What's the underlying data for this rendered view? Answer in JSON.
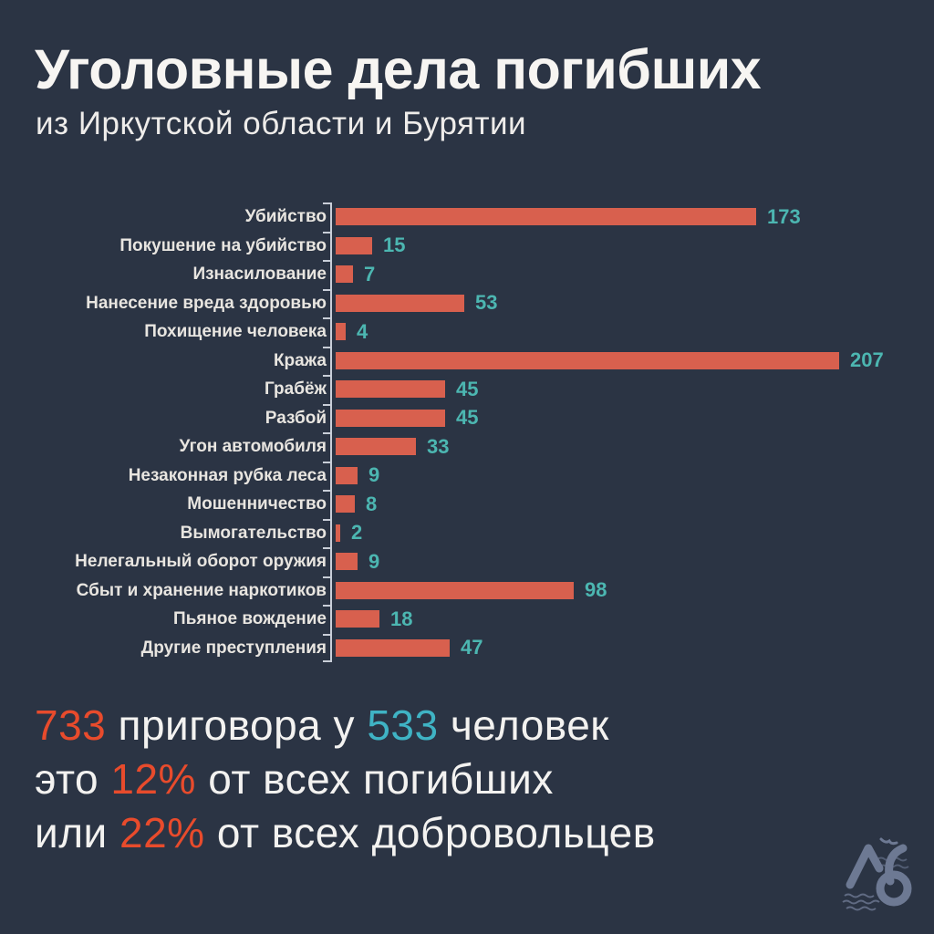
{
  "header": {
    "title": "Уголовные дела погибших",
    "subtitle": "из Иркутской области и Бурятии"
  },
  "chart_data": {
    "type": "bar",
    "orientation": "horizontal",
    "title": "Уголовные дела погибших из Иркутской области и Бурятии",
    "categories": [
      "Убийство",
      "Покушение на убийство",
      "Изнасилование",
      "Нанесение вреда здоровью",
      "Похищение человека",
      "Кража",
      "Грабёж",
      "Разбой",
      "Угон автомобиля",
      "Незаконная рубка леса",
      "Мошенничество",
      "Вымогательство",
      "Нелегальный оборот оружия",
      "Сбыт и хранение наркотиков",
      "Пьяное вождение",
      "Другие преступления"
    ],
    "values": [
      173,
      15,
      7,
      53,
      4,
      207,
      45,
      45,
      33,
      9,
      8,
      2,
      9,
      98,
      18,
      47
    ],
    "xlim": [
      0,
      207
    ],
    "grid": false,
    "legend": false,
    "value_labels_shown": true,
    "bar_color": "#d8604e",
    "value_label_color": "#4cb6b1",
    "axis_color": "#c9ced8",
    "category_label_color": "#e8e5e0"
  },
  "summary": {
    "line1": {
      "num1": "733",
      "mid": " приговора у ",
      "num2": "533",
      "end": " человек"
    },
    "line2": {
      "start": "это ",
      "pct": "12%",
      "end": " от всех погибших"
    },
    "line3": {
      "start": "или ",
      "pct": "22%",
      "end": " от всех добровольцев"
    }
  },
  "colors": {
    "background": "#2b3444",
    "text_primary": "#f3f2f0",
    "accent_red": "#e84b2c",
    "accent_cyan": "#3fb3c4"
  },
  "logo": {
    "name": "lb-waves-bird-emblem"
  }
}
